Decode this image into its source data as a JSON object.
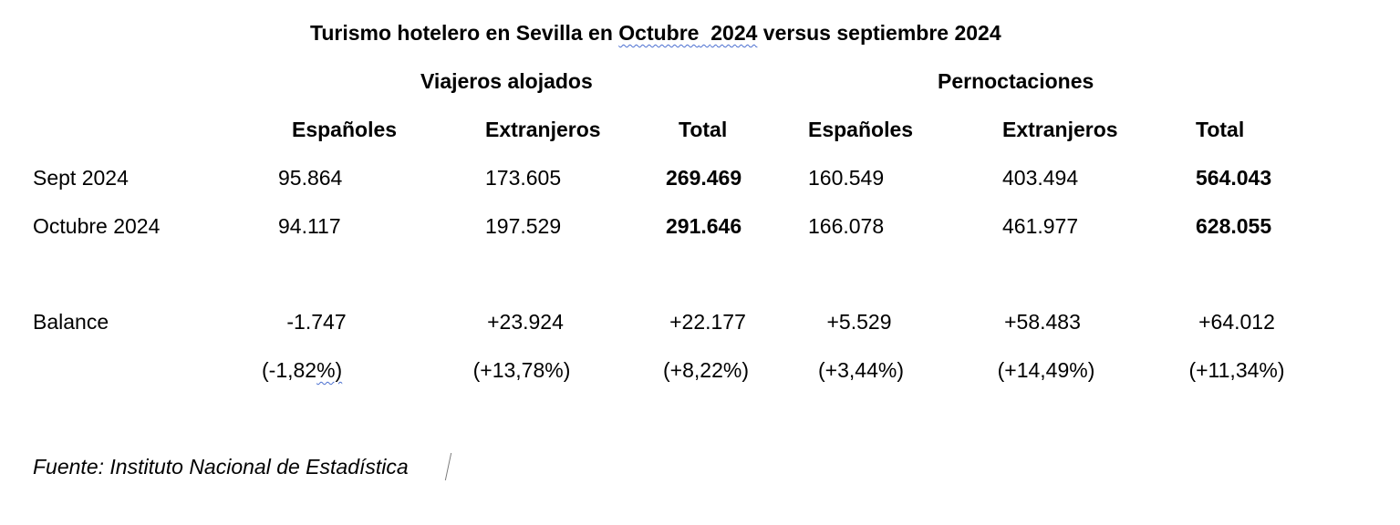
{
  "title": {
    "pre": "Turismo hotelero en Sevilla en ",
    "month": "Octubre",
    "gap": "  ",
    "year": "2024",
    "post": " versus septiembre 2024"
  },
  "groups": {
    "viajeros": "Viajeros alojados",
    "pernoctaciones": "Pernoctaciones"
  },
  "columns": [
    "Españoles",
    "Extranjeros",
    "Total",
    "Españoles",
    "Extranjeros",
    "Total"
  ],
  "rows": [
    {
      "label": "Sept 2024",
      "values": [
        "95.864",
        "173.605",
        "269.469",
        "160.549",
        "403.494",
        "564.043"
      ]
    },
    {
      "label": "Octubre 2024",
      "values": [
        "94.117",
        "197.529",
        "291.646",
        "166.078",
        "461.977",
        "628.055"
      ]
    }
  ],
  "balance": {
    "label": "Balance",
    "values": [
      "-1.747",
      "+23.924",
      "+22.177",
      "+5.529",
      "+58.483",
      "+64.012"
    ],
    "percent_first_main": "(-1,82",
    "percent_first_tail": "%)",
    "percents": [
      "(+13,78%)",
      "(+8,22%)",
      "(+3,44%)",
      "(+14,49%)",
      "(+11,34%)"
    ]
  },
  "source": "Fuente: Instituto Nacional de Estadística"
}
